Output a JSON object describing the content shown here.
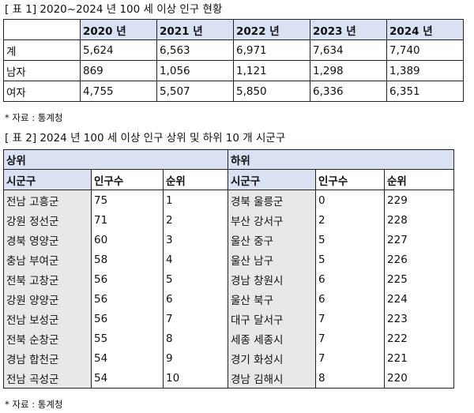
{
  "table1": {
    "caption": "[ 표 1] 2020~2024 년 100 세 이상 인구 현황",
    "corner": "",
    "columns": [
      "2020 년",
      "2021 년",
      "2022 년",
      "2023 년",
      "2024 년"
    ],
    "rows": [
      {
        "label": "계",
        "values": [
          "5,624",
          "6,563",
          "6,971",
          "7,634",
          "7,740"
        ]
      },
      {
        "label": "남자",
        "values": [
          "869",
          "1,056",
          "1,121",
          "1,298",
          "1,389"
        ]
      },
      {
        "label": "여자",
        "values": [
          "4,755",
          "5,507",
          "5,850",
          "6,336",
          "6,351"
        ]
      }
    ],
    "source": "* 자료 : 통계청"
  },
  "table2": {
    "caption": "[ 표 2] 2024 년 100 세 이상 인구 상위 및 하위 10 개 시군구",
    "group_top": "상위",
    "group_bottom": "하위",
    "headers": [
      "시군구",
      "인구수",
      "순위"
    ],
    "top": [
      {
        "region": "전남 고흥군",
        "pop": "75",
        "rank": "1"
      },
      {
        "region": "강원 정선군",
        "pop": "71",
        "rank": "2"
      },
      {
        "region": "경북 영양군",
        "pop": "60",
        "rank": "3"
      },
      {
        "region": "충남 부여군",
        "pop": "58",
        "rank": "4"
      },
      {
        "region": "전북 고창군",
        "pop": "56",
        "rank": "5"
      },
      {
        "region": "강원 양양군",
        "pop": "56",
        "rank": "6"
      },
      {
        "region": "전남 보성군",
        "pop": "56",
        "rank": "7"
      },
      {
        "region": "전북 순창군",
        "pop": "55",
        "rank": "8"
      },
      {
        "region": "경남 합천군",
        "pop": "54",
        "rank": "9"
      },
      {
        "region": "전남 곡성군",
        "pop": "54",
        "rank": "10"
      }
    ],
    "bottom": [
      {
        "region": "경북 울릉군",
        "pop": "0",
        "rank": "229"
      },
      {
        "region": "부산 강서구",
        "pop": "2",
        "rank": "228"
      },
      {
        "region": "울산 중구",
        "pop": "5",
        "rank": "227"
      },
      {
        "region": "울산 남구",
        "pop": "5",
        "rank": "226"
      },
      {
        "region": "경남 창원시",
        "pop": "6",
        "rank": "225"
      },
      {
        "region": "울산 북구",
        "pop": "6",
        "rank": "224"
      },
      {
        "region": "대구 달서구",
        "pop": "7",
        "rank": "223"
      },
      {
        "region": "세종 세종시",
        "pop": "7",
        "rank": "222"
      },
      {
        "region": "경기 화성시",
        "pop": "7",
        "rank": "221"
      },
      {
        "region": "경남 김해시",
        "pop": "8",
        "rank": "220"
      }
    ],
    "source": "* 자료 : 통계청"
  }
}
